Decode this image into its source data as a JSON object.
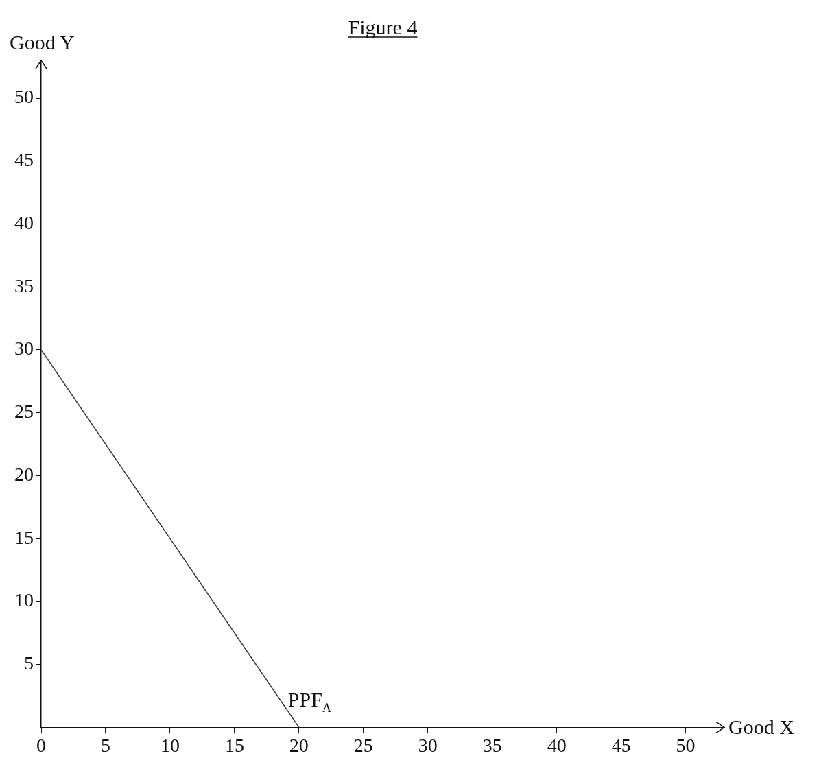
{
  "chart_data": {
    "type": "line",
    "title": "Figure 4",
    "xlabel": "Good X",
    "ylabel": "Good Y",
    "x": [
      0,
      20
    ],
    "series": [
      {
        "color": "#333333",
        "values": [
          30,
          0
        ]
      }
    ],
    "xlim": [
      0,
      53
    ],
    "xticks": [
      0,
      5,
      10,
      15,
      20,
      25,
      30,
      35,
      40,
      45,
      50
    ],
    "ylim": [
      0,
      53
    ],
    "yticks": [
      5,
      10,
      15,
      20,
      25,
      30,
      35,
      40,
      45,
      50
    ],
    "annotations": [
      {
        "text": "PPF$_{A}$",
        "x": 20,
        "y": 0
      }
    ],
    "grid": false,
    "legend": false,
    "marker": "none",
    "line_style": "solid"
  }
}
